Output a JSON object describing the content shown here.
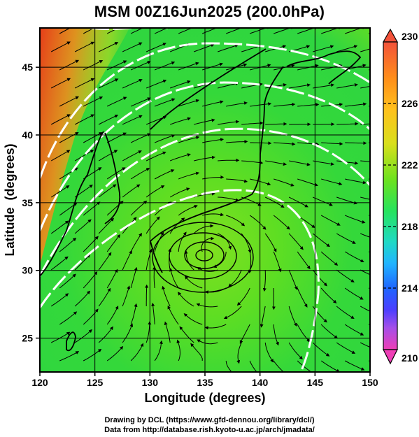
{
  "title": "MSM 00Z16Jun2025 (200.0hPa)",
  "map": {
    "type": "streamline-temperature-map",
    "xlabel": "Longitude (degrees)",
    "ylabel": "Latitude  (degrees)",
    "xlim": [
      120,
      150
    ],
    "ylim": [
      22.5,
      47.9
    ],
    "x_ticks": [
      "120",
      "125",
      "130",
      "135",
      "140",
      "145",
      "150"
    ],
    "y_ticks": [
      "25",
      "30",
      "35",
      "40",
      "45"
    ],
    "grid": true,
    "cyclone_center": {
      "lon": 135.5,
      "lat": 31.6
    },
    "colorbar": {
      "min": 210,
      "max": 230,
      "labels": [
        "230",
        "226",
        "222",
        "218",
        "214",
        "210"
      ],
      "colors": [
        "#ff2a6a",
        "#d45ab8",
        "#c15ae8",
        "#4b3fff",
        "#1f66ff",
        "#21b4ff",
        "#20d9c5",
        "#1fe49c",
        "#26e35e",
        "#35e23a",
        "#6be21f",
        "#aee21c",
        "#e6de1c",
        "#ffc11d",
        "#ff8f1a",
        "#ff5e18",
        "#f3523a"
      ]
    }
  },
  "credits": {
    "line1": "Drawing by DCL (https://www.gfd-dennou.org/library/dcl/)",
    "line2": "Data from http://database.rish.kyoto-u.ac.jp/arch/jmadata/"
  }
}
